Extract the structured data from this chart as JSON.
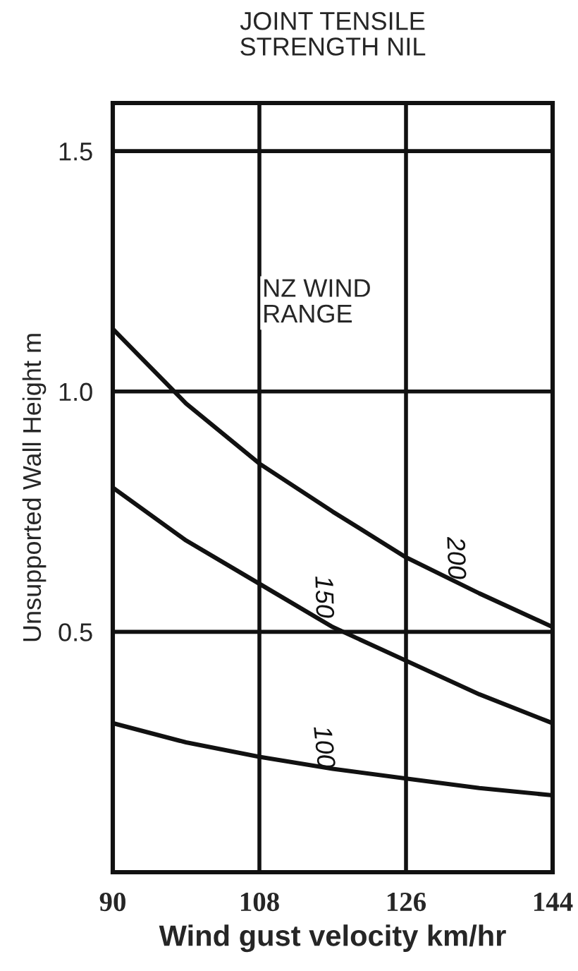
{
  "chart_data": {
    "type": "line",
    "title": "JOINT TENSILE\nSTRENGTH NIL",
    "xlabel": "Wind gust velocity km/hr",
    "ylabel": "Unsupported Wall Height m",
    "x": [
      90,
      99,
      108,
      117,
      126,
      135,
      144
    ],
    "series": [
      {
        "name": "200",
        "color": "#111111",
        "values": [
          1.13,
          0.975,
          0.85,
          0.75,
          0.655,
          0.58,
          0.51
        ]
      },
      {
        "name": "150",
        "color": "#111111",
        "values": [
          0.8,
          0.69,
          0.6,
          0.51,
          0.44,
          0.37,
          0.31
        ]
      },
      {
        "name": "100",
        "color": "#111111",
        "values": [
          0.31,
          0.27,
          0.24,
          0.215,
          0.195,
          0.175,
          0.16
        ]
      }
    ],
    "annotations": [
      "NZ WIND\nRANGE"
    ],
    "xlim": [
      90,
      144
    ],
    "xticks": [
      90,
      108,
      126,
      144
    ],
    "ylim": [
      0,
      1.6
    ],
    "yticks": [
      {
        "value": 0.5,
        "label": "0.5"
      },
      {
        "value": 1.0,
        "label": "1.0"
      },
      {
        "value": 1.5,
        "label": "1.5"
      }
    ],
    "grid": true,
    "legend": false,
    "marker": "none",
    "line_style": "solid"
  }
}
